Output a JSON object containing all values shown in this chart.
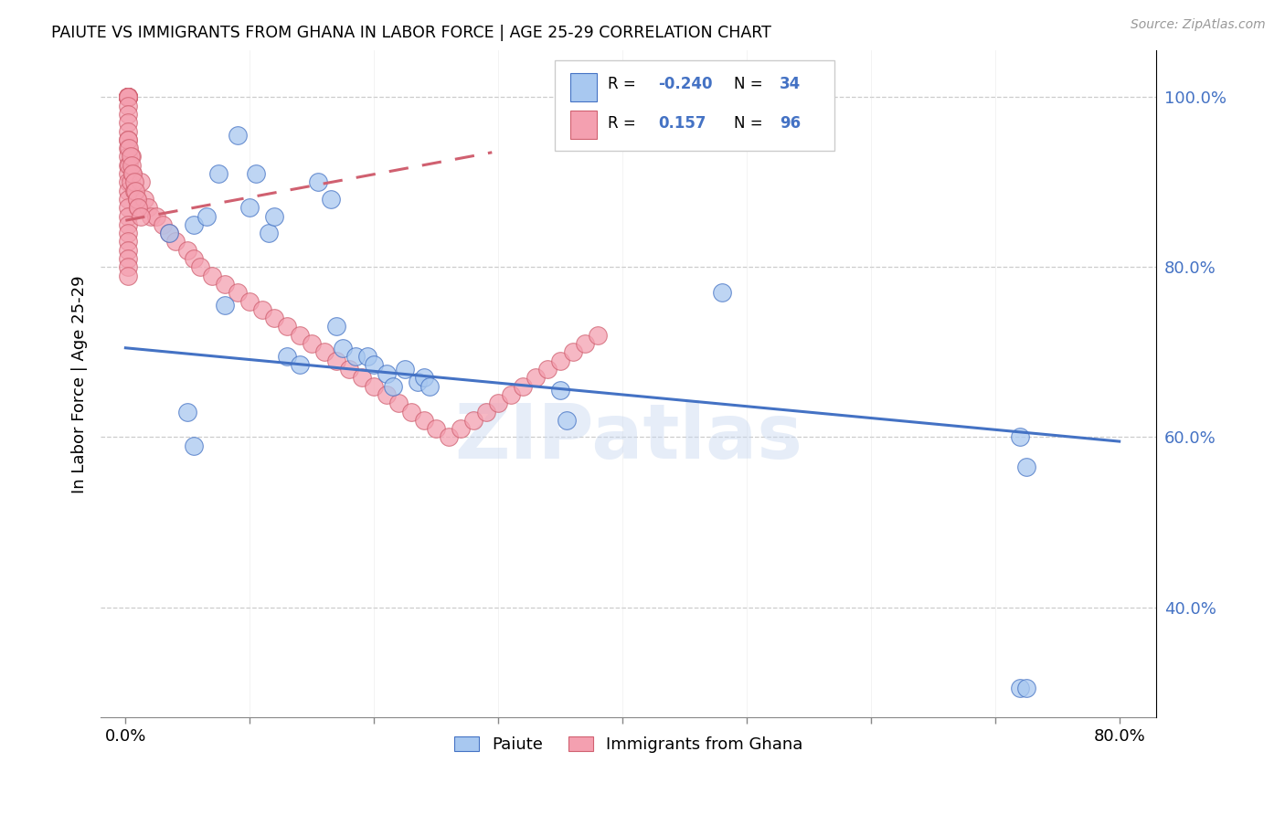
{
  "title": "PAIUTE VS IMMIGRANTS FROM GHANA IN LABOR FORCE | AGE 25-29 CORRELATION CHART",
  "source": "Source: ZipAtlas.com",
  "ylabel": "In Labor Force | Age 25-29",
  "xlabel": "",
  "legend_label1": "Paiute",
  "legend_label2": "Immigrants from Ghana",
  "r1": -0.24,
  "n1": 34,
  "r2": 0.157,
  "n2": 96,
  "color_blue": "#A8C8F0",
  "color_pink": "#F4A0B0",
  "color_blue_dark": "#4472C4",
  "color_pink_dark": "#D06070",
  "blue_trend_x": [
    0.0,
    0.8
  ],
  "blue_trend_y": [
    0.705,
    0.595
  ],
  "pink_trend_x": [
    0.0,
    0.295
  ],
  "pink_trend_y": [
    0.855,
    0.935
  ],
  "xlim": [
    -0.02,
    0.83
  ],
  "ylim": [
    0.27,
    1.055
  ],
  "paiute_x": [
    0.035,
    0.055,
    0.065,
    0.075,
    0.08,
    0.09,
    0.1,
    0.105,
    0.115,
    0.12,
    0.13,
    0.14,
    0.155,
    0.165,
    0.17,
    0.175,
    0.185,
    0.195,
    0.2,
    0.21,
    0.215,
    0.225,
    0.235,
    0.24,
    0.245,
    0.05,
    0.055,
    0.35,
    0.355,
    0.72,
    0.725,
    0.72,
    0.725,
    0.48
  ],
  "paiute_y": [
    0.84,
    0.85,
    0.86,
    0.91,
    0.755,
    0.955,
    0.87,
    0.91,
    0.84,
    0.86,
    0.695,
    0.685,
    0.9,
    0.88,
    0.73,
    0.705,
    0.695,
    0.695,
    0.685,
    0.675,
    0.66,
    0.68,
    0.665,
    0.67,
    0.66,
    0.63,
    0.59,
    0.655,
    0.62,
    0.305,
    0.305,
    0.6,
    0.565,
    0.77
  ],
  "ghana_x": [
    0.002,
    0.002,
    0.002,
    0.002,
    0.002,
    0.002,
    0.002,
    0.002,
    0.002,
    0.002,
    0.002,
    0.002,
    0.002,
    0.002,
    0.002,
    0.002,
    0.002,
    0.002,
    0.002,
    0.002,
    0.002,
    0.002,
    0.002,
    0.002,
    0.002,
    0.002,
    0.002,
    0.002,
    0.002,
    0.002,
    0.002,
    0.002,
    0.002,
    0.002,
    0.002,
    0.002,
    0.003,
    0.004,
    0.005,
    0.006,
    0.007,
    0.009,
    0.01,
    0.012,
    0.015,
    0.018,
    0.02,
    0.025,
    0.03,
    0.035,
    0.04,
    0.05,
    0.055,
    0.06,
    0.07,
    0.08,
    0.09,
    0.1,
    0.11,
    0.12,
    0.13,
    0.14,
    0.15,
    0.16,
    0.17,
    0.18,
    0.19,
    0.2,
    0.21,
    0.22,
    0.23,
    0.24,
    0.25,
    0.26,
    0.27,
    0.28,
    0.29,
    0.3,
    0.31,
    0.32,
    0.33,
    0.34,
    0.35,
    0.36,
    0.37,
    0.38,
    0.002,
    0.003,
    0.004,
    0.005,
    0.006,
    0.007,
    0.008,
    0.009,
    0.01,
    0.012
  ],
  "ghana_y": [
    1.0,
    1.0,
    1.0,
    1.0,
    1.0,
    1.0,
    1.0,
    1.0,
    1.0,
    1.0,
    1.0,
    1.0,
    1.0,
    1.0,
    1.0,
    0.99,
    0.98,
    0.97,
    0.96,
    0.95,
    0.94,
    0.93,
    0.92,
    0.91,
    0.9,
    0.89,
    0.88,
    0.87,
    0.86,
    0.85,
    0.84,
    0.83,
    0.82,
    0.81,
    0.8,
    0.79,
    0.92,
    0.9,
    0.93,
    0.91,
    0.89,
    0.88,
    0.87,
    0.9,
    0.88,
    0.87,
    0.86,
    0.86,
    0.85,
    0.84,
    0.83,
    0.82,
    0.81,
    0.8,
    0.79,
    0.78,
    0.77,
    0.76,
    0.75,
    0.74,
    0.73,
    0.72,
    0.71,
    0.7,
    0.69,
    0.68,
    0.67,
    0.66,
    0.65,
    0.64,
    0.63,
    0.62,
    0.61,
    0.6,
    0.61,
    0.62,
    0.63,
    0.64,
    0.65,
    0.66,
    0.67,
    0.68,
    0.69,
    0.7,
    0.71,
    0.72,
    0.95,
    0.94,
    0.93,
    0.92,
    0.91,
    0.9,
    0.89,
    0.88,
    0.87,
    0.86
  ]
}
